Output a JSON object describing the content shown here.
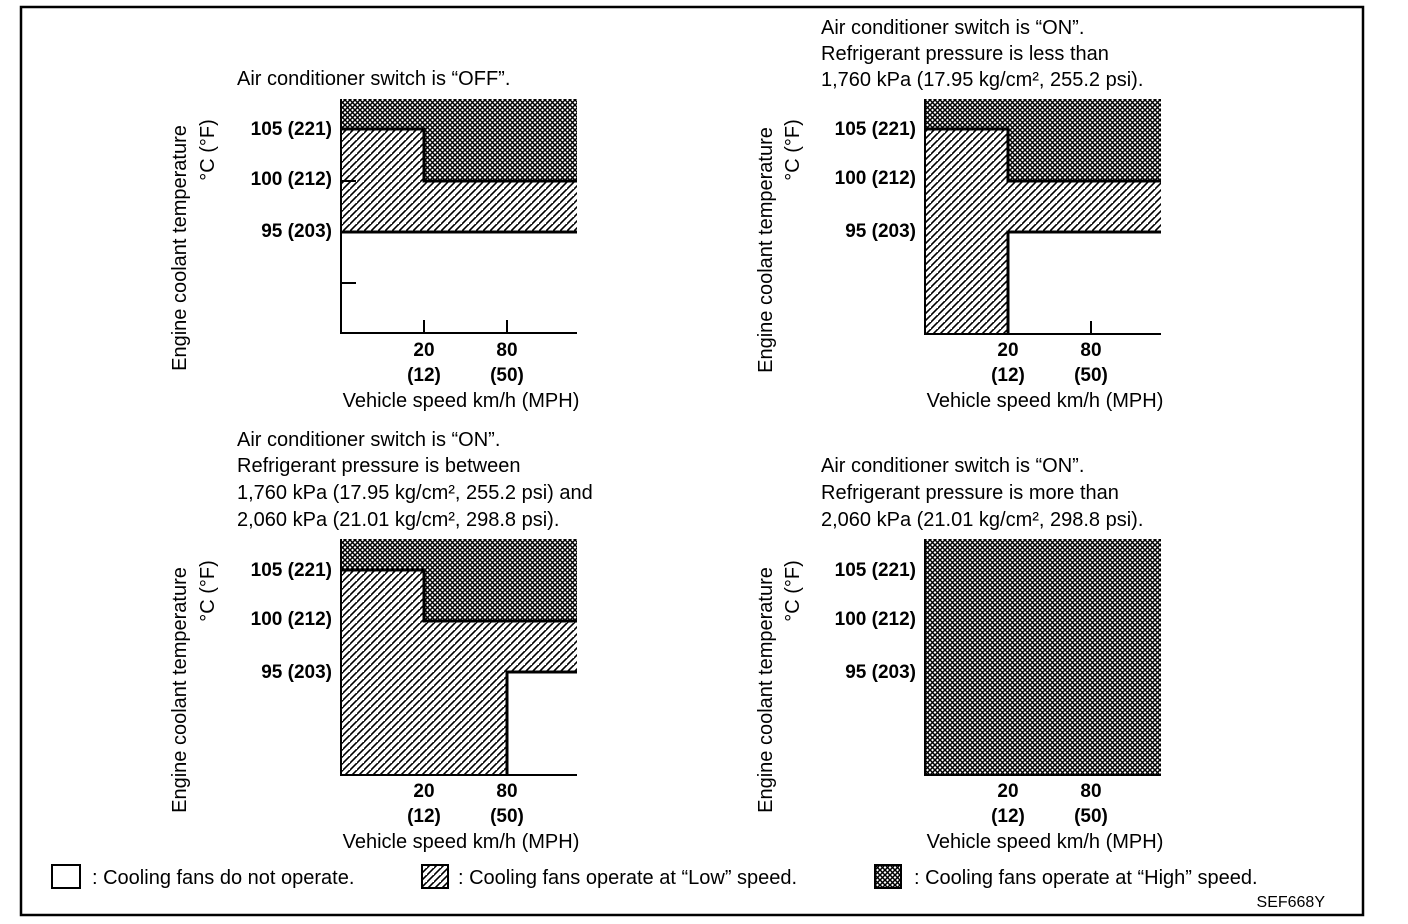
{
  "axis_labels": {
    "y_line1": "Engine coolant temperature",
    "y_line2": "°C (°F)",
    "x": "Vehicle speed km/h (MPH)"
  },
  "temperature_ticks": [
    {
      "c": 105,
      "label": "105 (221)"
    },
    {
      "c": 100,
      "label": "100 (212)"
    },
    {
      "c": 95,
      "label": "95 (203)"
    }
  ],
  "speed_ticks": [
    {
      "kmh": 20,
      "label": "20",
      "mph_label": "(12)"
    },
    {
      "kmh": 80,
      "label": "80",
      "mph_label": "(50)"
    }
  ],
  "fan_modes": {
    "off": "not operate",
    "low": "Low",
    "high": "High"
  },
  "panels": [
    {
      "caption": [
        "Air conditioner switch is “OFF”."
      ],
      "regions": {
        "high": "temperature ≥ 100 °C, or ≥ 105 °C below 20 km/h",
        "low": "95–100 °C, 95–105 °C below 20 km/h",
        "off": "below 95 °C"
      }
    },
    {
      "caption": [
        "Air conditioner switch is “ON”.",
        "Refrigerant pressure is less than",
        "1,760 kPa (17.95 kg/cm², 255.2 psi)."
      ],
      "regions": {
        "high": "temperature ≥ 100 °C, or ≥ 105 °C below 20 km/h",
        "low": "all temperatures below 20 km/h; 95–100 °C above 20 km/h",
        "off": "below 95 °C above 20 km/h"
      }
    },
    {
      "caption": [
        "Air conditioner switch is “ON”.",
        "Refrigerant pressure is between",
        "1,760 kPa (17.95 kg/cm², 255.2 psi) and",
        "2,060 kPa (21.01 kg/cm², 298.8 psi)."
      ],
      "regions": {
        "high": "temperature ≥ 100 °C, or ≥ 105 °C below 20 km/h",
        "low": "all temperatures below 80 km/h; 95–100 °C above 80 km/h",
        "off": "below 95 °C above 80 km/h"
      }
    },
    {
      "caption": [
        "Air conditioner switch is “ON”.",
        "Refrigerant pressure is more than",
        "2,060 kPa (21.01 kg/cm², 298.8 psi)."
      ],
      "regions": {
        "high": "all temperatures and speeds"
      }
    }
  ],
  "legend": [
    {
      "pattern": "none",
      "text": ": Cooling fans do not operate."
    },
    {
      "pattern": "hatch",
      "text": ": Cooling fans operate at “Low” speed."
    },
    {
      "pattern": "crosshatch",
      "text": ": Cooling fans operate at “High” speed."
    }
  ],
  "figure_code": "SEF668Y"
}
